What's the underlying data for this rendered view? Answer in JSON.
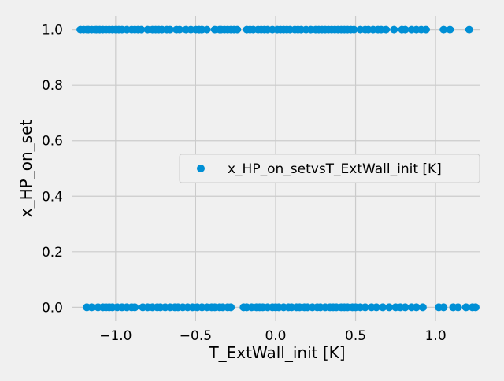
{
  "chart_data": {
    "type": "scatter",
    "title": "",
    "xlabel": "T_ExtWall_init [K]",
    "ylabel": "x_HP_on_set",
    "xlim": [
      -1.27,
      1.28
    ],
    "ylim": [
      -0.05,
      1.05
    ],
    "xticks": [
      -1.0,
      -0.5,
      0.0,
      0.5,
      1.0
    ],
    "xtick_labels": [
      "−1.0",
      "−0.5",
      "0.0",
      "0.5",
      "1.0"
    ],
    "yticks": [
      0.0,
      0.2,
      0.4,
      0.6,
      0.8,
      1.0
    ],
    "ytick_labels": [
      "0.0",
      "0.2",
      "0.4",
      "0.6",
      "0.8",
      "1.0"
    ],
    "grid": true,
    "legend_position": "center-right",
    "series": [
      {
        "name": "x_HP_on_setvsT_ExtWall_init [K]",
        "color": "#008fd5",
        "points": [
          [
            -1.22,
            1
          ],
          [
            -1.2,
            1
          ],
          [
            -1.18,
            1
          ],
          [
            -1.17,
            1
          ],
          [
            -1.15,
            1
          ],
          [
            -1.13,
            1
          ],
          [
            -1.12,
            1
          ],
          [
            -1.1,
            1
          ],
          [
            -1.08,
            1
          ],
          [
            -1.06,
            1
          ],
          [
            -1.04,
            1
          ],
          [
            -1.02,
            1
          ],
          [
            -1.0,
            1
          ],
          [
            -0.98,
            1
          ],
          [
            -0.96,
            1
          ],
          [
            -0.93,
            1
          ],
          [
            -0.9,
            1
          ],
          [
            -0.88,
            1
          ],
          [
            -0.86,
            1
          ],
          [
            -0.84,
            1
          ],
          [
            -0.8,
            1
          ],
          [
            -0.77,
            1
          ],
          [
            -0.75,
            1
          ],
          [
            -0.73,
            1
          ],
          [
            -0.71,
            1
          ],
          [
            -0.68,
            1
          ],
          [
            -0.66,
            1
          ],
          [
            -0.62,
            1
          ],
          [
            -0.6,
            1
          ],
          [
            -0.56,
            1
          ],
          [
            -0.53,
            1
          ],
          [
            -0.5,
            1
          ],
          [
            -0.48,
            1
          ],
          [
            -0.46,
            1
          ],
          [
            -0.43,
            1
          ],
          [
            -0.38,
            1
          ],
          [
            -0.35,
            1
          ],
          [
            -0.34,
            1
          ],
          [
            -0.32,
            1
          ],
          [
            -0.3,
            1
          ],
          [
            -0.28,
            1
          ],
          [
            -0.26,
            1
          ],
          [
            -0.24,
            1
          ],
          [
            -0.18,
            1
          ],
          [
            -0.16,
            1
          ],
          [
            -0.14,
            1
          ],
          [
            -0.11,
            1
          ],
          [
            -0.09,
            1
          ],
          [
            -0.07,
            1
          ],
          [
            -0.05,
            1
          ],
          [
            -0.02,
            1
          ],
          [
            0.01,
            1
          ],
          [
            0.03,
            1
          ],
          [
            0.05,
            1
          ],
          [
            0.07,
            1
          ],
          [
            0.09,
            1
          ],
          [
            0.12,
            1
          ],
          [
            0.14,
            1
          ],
          [
            0.16,
            1
          ],
          [
            0.19,
            1
          ],
          [
            0.22,
            1
          ],
          [
            0.25,
            1
          ],
          [
            0.27,
            1
          ],
          [
            0.29,
            1
          ],
          [
            0.31,
            1
          ],
          [
            0.33,
            1
          ],
          [
            0.35,
            1
          ],
          [
            0.37,
            1
          ],
          [
            0.39,
            1
          ],
          [
            0.41,
            1
          ],
          [
            0.43,
            1
          ],
          [
            0.45,
            1
          ],
          [
            0.47,
            1
          ],
          [
            0.49,
            1
          ],
          [
            0.53,
            1
          ],
          [
            0.56,
            1
          ],
          [
            0.58,
            1
          ],
          [
            0.61,
            1
          ],
          [
            0.64,
            1
          ],
          [
            0.66,
            1
          ],
          [
            0.69,
            1
          ],
          [
            0.74,
            1
          ],
          [
            0.79,
            1
          ],
          [
            0.81,
            1
          ],
          [
            0.85,
            1
          ],
          [
            0.88,
            1
          ],
          [
            0.91,
            1
          ],
          [
            0.94,
            1
          ],
          [
            1.05,
            1
          ],
          [
            1.09,
            1
          ],
          [
            1.21,
            1
          ],
          [
            -1.18,
            0
          ],
          [
            -1.15,
            0
          ],
          [
            -1.11,
            0
          ],
          [
            -1.08,
            0
          ],
          [
            -1.06,
            0
          ],
          [
            -1.04,
            0
          ],
          [
            -1.02,
            0
          ],
          [
            -0.99,
            0
          ],
          [
            -0.96,
            0
          ],
          [
            -0.93,
            0
          ],
          [
            -0.9,
            0
          ],
          [
            -0.88,
            0
          ],
          [
            -0.83,
            0
          ],
          [
            -0.8,
            0
          ],
          [
            -0.77,
            0
          ],
          [
            -0.74,
            0
          ],
          [
            -0.72,
            0
          ],
          [
            -0.69,
            0
          ],
          [
            -0.66,
            0
          ],
          [
            -0.63,
            0
          ],
          [
            -0.61,
            0
          ],
          [
            -0.58,
            0
          ],
          [
            -0.55,
            0
          ],
          [
            -0.52,
            0
          ],
          [
            -0.49,
            0
          ],
          [
            -0.46,
            0
          ],
          [
            -0.43,
            0
          ],
          [
            -0.4,
            0
          ],
          [
            -0.38,
            0
          ],
          [
            -0.35,
            0
          ],
          [
            -0.33,
            0
          ],
          [
            -0.3,
            0
          ],
          [
            -0.28,
            0
          ],
          [
            -0.2,
            0
          ],
          [
            -0.18,
            0
          ],
          [
            -0.15,
            0
          ],
          [
            -0.12,
            0
          ],
          [
            -0.1,
            0
          ],
          [
            -0.08,
            0
          ],
          [
            -0.05,
            0
          ],
          [
            -0.02,
            0
          ],
          [
            0.0,
            0
          ],
          [
            0.02,
            0
          ],
          [
            0.05,
            0
          ],
          [
            0.08,
            0
          ],
          [
            0.1,
            0
          ],
          [
            0.13,
            0
          ],
          [
            0.15,
            0
          ],
          [
            0.18,
            0
          ],
          [
            0.2,
            0
          ],
          [
            0.23,
            0
          ],
          [
            0.26,
            0
          ],
          [
            0.28,
            0
          ],
          [
            0.31,
            0
          ],
          [
            0.34,
            0
          ],
          [
            0.36,
            0
          ],
          [
            0.38,
            0
          ],
          [
            0.41,
            0
          ],
          [
            0.43,
            0
          ],
          [
            0.45,
            0
          ],
          [
            0.48,
            0
          ],
          [
            0.5,
            0
          ],
          [
            0.53,
            0
          ],
          [
            0.56,
            0
          ],
          [
            0.6,
            0
          ],
          [
            0.63,
            0
          ],
          [
            0.67,
            0
          ],
          [
            0.71,
            0
          ],
          [
            0.75,
            0
          ],
          [
            0.78,
            0
          ],
          [
            0.81,
            0
          ],
          [
            0.85,
            0
          ],
          [
            0.88,
            0
          ],
          [
            0.92,
            0
          ],
          [
            1.02,
            0
          ],
          [
            1.05,
            0
          ],
          [
            1.11,
            0
          ],
          [
            1.14,
            0
          ],
          [
            1.19,
            0
          ],
          [
            1.23,
            0
          ],
          [
            1.25,
            0
          ]
        ]
      }
    ]
  }
}
